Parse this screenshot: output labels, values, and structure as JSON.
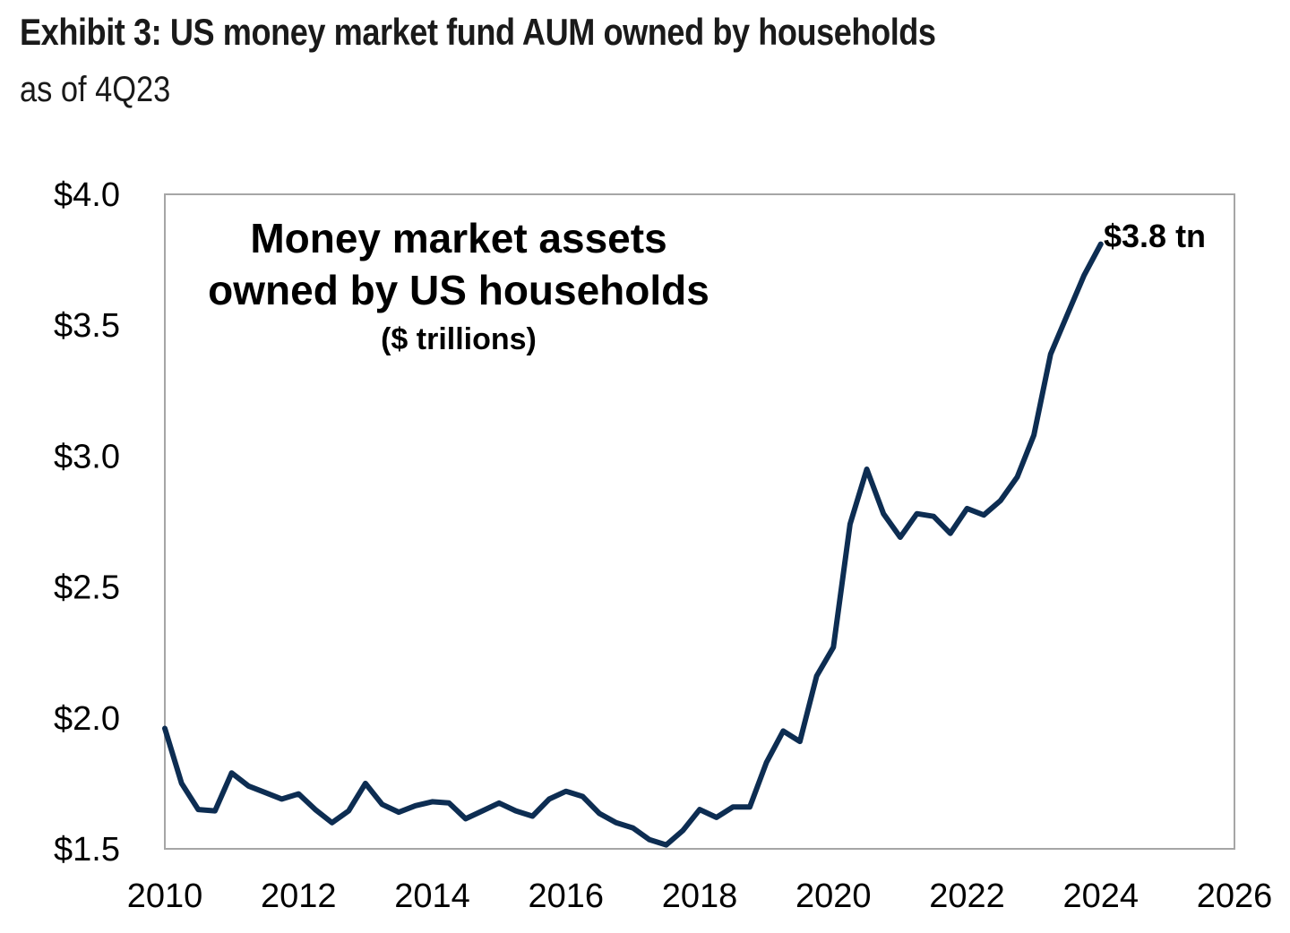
{
  "header": {
    "title": "Exhibit 3: US money market fund AUM owned by households",
    "subtitle": "as of 4Q23"
  },
  "colors": {
    "line": "#0d2d52",
    "frame": "#a6a6a6",
    "text": "#000000",
    "background": "#ffffff"
  },
  "chart_data": {
    "type": "line",
    "title_lines": [
      "Money market assets",
      "owned by US households"
    ],
    "unit_label": "($ trillions)",
    "xlabel": "",
    "ylabel": "",
    "xlim": [
      2010,
      2026
    ],
    "ylim": [
      1.5,
      4.0
    ],
    "x_ticks": [
      2010,
      2012,
      2014,
      2016,
      2018,
      2020,
      2022,
      2024,
      2026
    ],
    "x_tick_labels": [
      "2010",
      "2012",
      "2014",
      "2016",
      "2018",
      "2020",
      "2022",
      "2024",
      "2026"
    ],
    "y_ticks": [
      1.5,
      2.0,
      2.5,
      3.0,
      3.5,
      4.0
    ],
    "y_tick_labels": [
      "$1.5",
      "$2.0",
      "$2.5",
      "$3.0",
      "$3.5",
      "$4.0"
    ],
    "grid": false,
    "end_label": "$3.8 tn",
    "series": [
      {
        "x": [
          2010.0,
          2010.25,
          2010.5,
          2010.75,
          2011.0,
          2011.25,
          2011.5,
          2011.75,
          2012.0,
          2012.25,
          2012.5,
          2012.75,
          2013.0,
          2013.25,
          2013.5,
          2013.75,
          2014.0,
          2014.25,
          2014.5,
          2014.75,
          2015.0,
          2015.25,
          2015.5,
          2015.75,
          2016.0,
          2016.25,
          2016.5,
          2016.75,
          2017.0,
          2017.25,
          2017.5,
          2017.75,
          2018.0,
          2018.25,
          2018.5,
          2018.75,
          2019.0,
          2019.25,
          2019.5,
          2019.75,
          2020.0,
          2020.25,
          2020.5,
          2020.75,
          2021.0,
          2021.25,
          2021.5,
          2021.75,
          2022.0,
          2022.25,
          2022.5,
          2022.75,
          2023.0,
          2023.25,
          2023.5,
          2023.75,
          2024.0
        ],
        "y": [
          1.96,
          1.75,
          1.65,
          1.645,
          1.79,
          1.74,
          1.715,
          1.69,
          1.71,
          1.65,
          1.6,
          1.645,
          1.75,
          1.67,
          1.64,
          1.665,
          1.68,
          1.675,
          1.615,
          1.645,
          1.675,
          1.645,
          1.625,
          1.69,
          1.72,
          1.7,
          1.635,
          1.6,
          1.58,
          1.535,
          1.515,
          1.57,
          1.65,
          1.62,
          1.66,
          1.66,
          1.83,
          1.95,
          1.91,
          2.16,
          2.27,
          2.74,
          2.95,
          2.78,
          2.69,
          2.78,
          2.77,
          2.705,
          2.8,
          2.775,
          2.83,
          2.92,
          3.08,
          3.39,
          3.54,
          3.69,
          3.81
        ]
      }
    ]
  }
}
